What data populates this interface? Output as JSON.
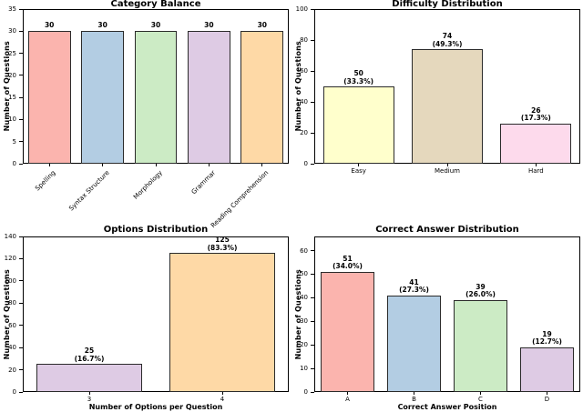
{
  "figure_title": "",
  "palette": {
    "salmon": "#fbb4ae",
    "light_blue": "#b3cde3",
    "light_green": "#ccebc5",
    "lavender": "#decbe4",
    "light_orange": "#fed9a6",
    "light_yellow": "#ffffcc",
    "tan": "#e5d8bd",
    "pink": "#fddaec",
    "bar_edge": "#2b2b2b",
    "axis": "#000000"
  },
  "chart_data": [
    {
      "type": "bar",
      "title": "Category Balance",
      "xlabel": "",
      "ylabel": "Number of Questions",
      "categories": [
        "Spelling",
        "Syntax Structure",
        "Morphology",
        "Grammar",
        "Reading Comprehension"
      ],
      "values": [
        30,
        30,
        30,
        30,
        30
      ],
      "bar_labels": [
        "30",
        "30",
        "30",
        "30",
        "30"
      ],
      "pct_labels": [
        "",
        "",
        "",
        "",
        ""
      ],
      "colors": [
        "#fbb4ae",
        "#b3cde3",
        "#ccebc5",
        "#decbe4",
        "#fed9a6"
      ],
      "ylim": [
        0,
        35
      ],
      "yticks": [
        0,
        5,
        10,
        15,
        20,
        25,
        30,
        35
      ],
      "xtick_rotation": 45,
      "grid": false,
      "legend": null
    },
    {
      "type": "bar",
      "title": "Difficulty Distribution",
      "xlabel": "",
      "ylabel": "Number of Questions",
      "categories": [
        "Easy",
        "Medium",
        "Hard"
      ],
      "values": [
        50,
        74,
        26
      ],
      "bar_labels": [
        "50",
        "74",
        "26"
      ],
      "pct_labels": [
        "(33.3%)",
        "(49.3%)",
        "(17.3%)"
      ],
      "colors": [
        "#ffffcc",
        "#e5d8bd",
        "#fddaec"
      ],
      "ylim": [
        0,
        100
      ],
      "yticks": [
        0,
        20,
        40,
        60,
        80,
        100
      ],
      "xtick_rotation": 0,
      "grid": false,
      "legend": null
    },
    {
      "type": "bar",
      "title": "Options Distribution",
      "xlabel": "Number of Options per Question",
      "ylabel": "Number of Questions",
      "categories": [
        "3",
        "4"
      ],
      "values": [
        25,
        125
      ],
      "bar_labels": [
        "25",
        "125"
      ],
      "pct_labels": [
        "(16.7%)",
        "(83.3%)"
      ],
      "colors": [
        "#decbe4",
        "#fed9a6"
      ],
      "ylim": [
        0,
        140
      ],
      "yticks": [
        0,
        20,
        40,
        60,
        80,
        100,
        120,
        140
      ],
      "xtick_rotation": 0,
      "grid": false,
      "legend": null
    },
    {
      "type": "bar",
      "title": "Correct Answer Distribution",
      "xlabel": "Correct Answer Position",
      "ylabel": "Number of Questions",
      "categories": [
        "A",
        "B",
        "C",
        "D"
      ],
      "values": [
        51,
        41,
        39,
        19
      ],
      "bar_labels": [
        "51",
        "41",
        "39",
        "19"
      ],
      "pct_labels": [
        "(34.0%)",
        "(27.3%)",
        "(26.0%)",
        "(12.7%)"
      ],
      "colors": [
        "#fbb4ae",
        "#b3cde3",
        "#ccebc5",
        "#decbe4"
      ],
      "ylim": [
        0,
        66
      ],
      "yticks": [
        0,
        10,
        20,
        30,
        40,
        50,
        60
      ],
      "xtick_rotation": 0,
      "grid": false,
      "legend": null
    }
  ]
}
